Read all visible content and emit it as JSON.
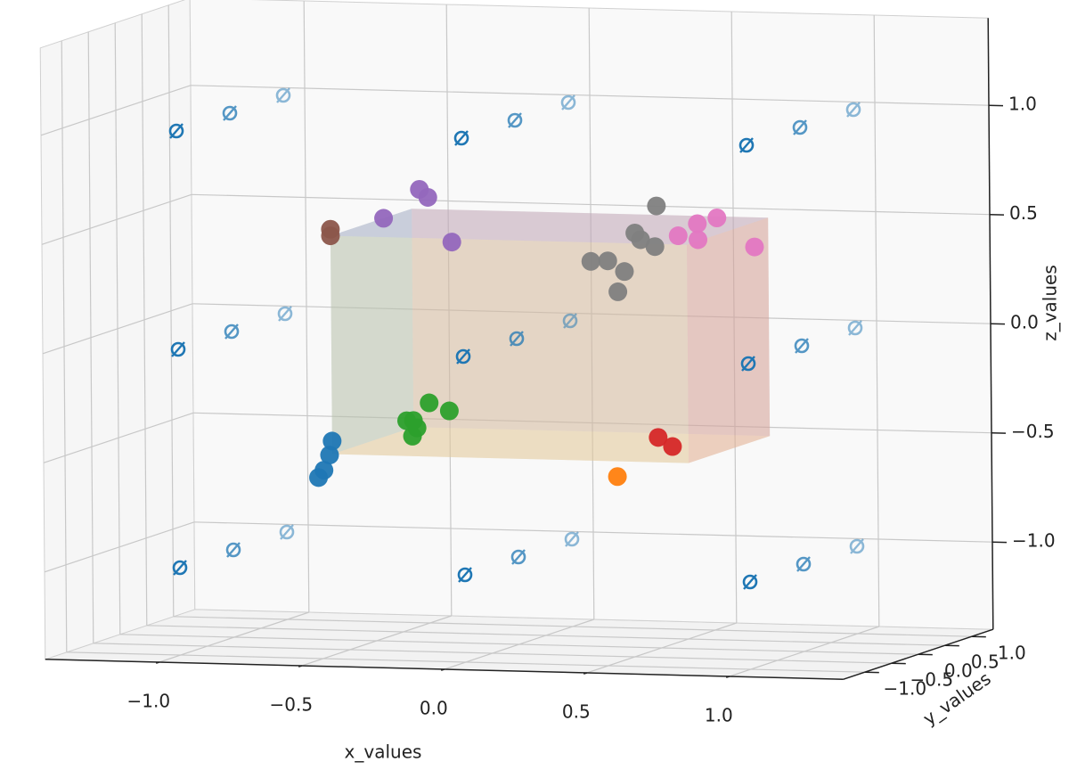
{
  "chart_data": {
    "type": "scatter3d",
    "x_label": "x_values",
    "y_label": "y_values",
    "z_label": "z_values",
    "xlim": [
      -1.4,
      1.4
    ],
    "ylim": [
      -1.4,
      1.4
    ],
    "zlim": [
      -1.4,
      1.4
    ],
    "xticks": [
      {
        "value": -1.0,
        "label": "−1.0"
      },
      {
        "value": -0.5,
        "label": "−0.5"
      },
      {
        "value": 0,
        "label": "0.0"
      },
      0.5,
      {
        "value": 1.0,
        "label": "1.0"
      }
    ],
    "yticks": [
      {
        "value": -1.0,
        "label": "−1.0"
      },
      {
        "value": -0.5,
        "label": "−0.5"
      },
      {
        "value": 0,
        "label": "0.0"
      },
      0.5,
      {
        "value": 1.0,
        "label": "1.0"
      }
    ],
    "zticks": [
      {
        "value": -1.0,
        "label": "−1.0"
      },
      {
        "value": -0.5,
        "label": "−0.5"
      },
      {
        "value": 0,
        "label": "0.0"
      },
      0.5,
      {
        "value": 1.0,
        "label": "1.0"
      }
    ],
    "grid": true,
    "cuboid": {
      "x": [
        -0.5,
        0.75
      ],
      "y": [
        -0.8,
        0.72
      ],
      "z": [
        -0.48,
        0.52
      ],
      "face_colors": {
        "bottom": "#d9d27a",
        "top": "#c9a3d6",
        "left": "#6fc1a8",
        "right": "#e89aa3",
        "back": "#b7b08a",
        "front": "#e8c4b0"
      },
      "face_opacity": 0.35
    },
    "series": [
      {
        "color": "#1f77b4",
        "marker": "emptyset",
        "x": [
          -1,
          -1,
          -1,
          -1,
          -1,
          -1,
          -1,
          -1,
          -1,
          0,
          0,
          0,
          0,
          0,
          0,
          0,
          0,
          0,
          1,
          1,
          1,
          1,
          1,
          1,
          1,
          1,
          1
        ],
        "y": [
          -1,
          -1,
          -1,
          0,
          0,
          0,
          1,
          1,
          1,
          -1,
          -1,
          -1,
          0,
          0,
          0,
          1,
          1,
          1,
          -1,
          -1,
          -1,
          0,
          0,
          0,
          1,
          1,
          1
        ],
        "z": [
          -1,
          0,
          1,
          -1,
          0,
          1,
          -1,
          0,
          1,
          -1,
          0,
          1,
          -1,
          0,
          1,
          -1,
          0,
          1,
          -1,
          0,
          1,
          -1,
          0,
          1,
          -1,
          0,
          1
        ]
      },
      {
        "color": "#1f77b4",
        "marker": "circle",
        "x": [
          -0.5,
          -0.5,
          -0.52,
          -0.53
        ],
        "y": [
          -0.8,
          -0.85,
          -0.85,
          -0.9
        ],
        "z": [
          -0.42,
          -0.48,
          -0.55,
          -0.58
        ]
      },
      {
        "color": "#ff7f0e",
        "marker": "circle",
        "x": [
          0.5
        ],
        "y": [
          -0.8
        ],
        "z": [
          -0.55
        ]
      },
      {
        "color": "#2ca02c",
        "marker": "circle",
        "x": [
          -0.5,
          -0.5,
          -0.45,
          -0.37,
          -0.52,
          -0.48
        ],
        "y": [
          0.7,
          0.72,
          0.75,
          0.7,
          0.7,
          0.68
        ],
        "z": [
          -0.52,
          -0.45,
          -0.37,
          -0.4,
          -0.45,
          -0.48
        ]
      },
      {
        "color": "#d62728",
        "marker": "circle",
        "x": [
          0.55,
          0.6
        ],
        "y": [
          -0.3,
          -0.3
        ],
        "z": [
          -0.41,
          -0.45
        ]
      },
      {
        "color": "#9467bd",
        "marker": "circle",
        "x": [
          -0.52,
          -0.45,
          -0.43,
          -0.3
        ],
        "y": [
          0.3,
          0.6,
          0.65,
          0.4
        ],
        "z": [
          0.51,
          0.62,
          0.58,
          0.4
        ]
      },
      {
        "color": "#8c564b",
        "marker": "circle",
        "x": [
          -0.5,
          -0.5
        ],
        "y": [
          -0.8,
          -0.8
        ],
        "z": [
          0.55,
          0.52
        ]
      },
      {
        "color": "#e377c2",
        "marker": "circle",
        "x": [
          0.72,
          0.75,
          0.8,
          0.78,
          0.95
        ],
        "y": [
          -0.8,
          -0.6,
          -0.5,
          -0.75,
          -0.6
        ],
        "z": [
          0.56,
          0.6,
          0.62,
          0.54,
          0.5
        ]
      },
      {
        "color": "#7f7f7f",
        "marker": "circle",
        "x": [
          0.3,
          0.35,
          0.38,
          0.3,
          0.4,
          0.4,
          0.45,
          0.38
        ],
        "y": [
          -0.2,
          -0.15,
          0.0,
          0.3,
          0.2,
          0.5,
          0.2,
          0.2
        ],
        "z": [
          0.38,
          0.38,
          0.32,
          0.2,
          0.45,
          0.58,
          0.42,
          0.48
        ]
      }
    ]
  }
}
